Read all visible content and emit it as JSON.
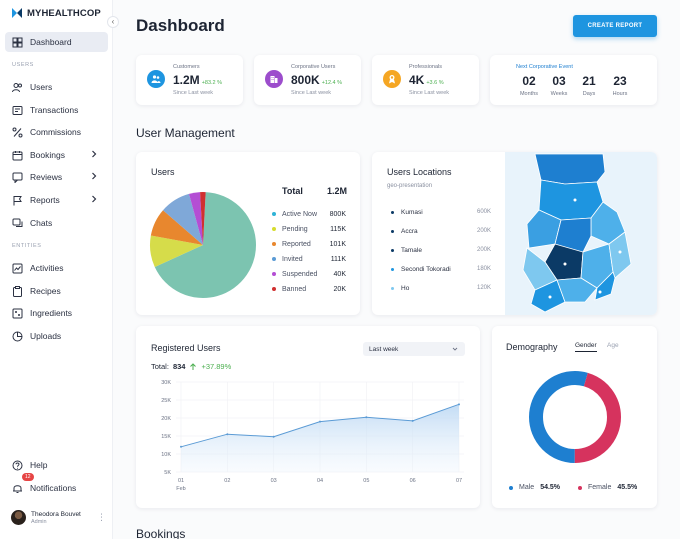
{
  "app": {
    "name": "MYHEALTHCOP"
  },
  "sidebar": {
    "collapse_label": "‹",
    "items_main": [
      {
        "label": "Dashboard",
        "icon": "grid-icon"
      }
    ],
    "section_users": "USERS",
    "items_users": [
      {
        "label": "Users",
        "icon": "users-icon"
      },
      {
        "label": "Transactions",
        "icon": "transactions-icon"
      },
      {
        "label": "Commissions",
        "icon": "percent-icon"
      },
      {
        "label": "Bookings",
        "icon": "calendar-icon"
      },
      {
        "label": "Reviews",
        "icon": "reviews-icon"
      },
      {
        "label": "Reports",
        "icon": "flag-icon"
      },
      {
        "label": "Chats",
        "icon": "chat-icon"
      }
    ],
    "section_entities": "ENTITIES",
    "items_entities": [
      {
        "label": "Activities",
        "icon": "activities-icon"
      },
      {
        "label": "Recipes",
        "icon": "clipboard-icon"
      },
      {
        "label": "Ingredients",
        "icon": "ingredients-icon"
      },
      {
        "label": "Uploads",
        "icon": "uploads-icon"
      }
    ],
    "help": "Help",
    "notifications": "Notifications",
    "notifications_count": "12",
    "user": {
      "name": "Theodora Bouvet",
      "role": "Admin",
      "more": "⋮"
    }
  },
  "header": {
    "title": "Dashboard",
    "create_button": "CREATE REPORT"
  },
  "stats": [
    {
      "label": "Customers",
      "value": "1.2M",
      "delta": "+83.2 %",
      "sub": "Since Last week",
      "color": "#1e95e0",
      "icon": "customers-icon"
    },
    {
      "label": "Corporative Users",
      "value": "800K",
      "delta": "+12.4 %",
      "sub": "Since Last week",
      "color": "#9c4dcc",
      "icon": "building-icon"
    },
    {
      "label": "Professionals",
      "value": "4K",
      "delta": "+3.6 %",
      "sub": "Since Last week",
      "color": "#f5a623",
      "icon": "badge-icon"
    }
  ],
  "event": {
    "title": "Next Corporative Event",
    "cells": [
      {
        "num": "02",
        "label": "Months"
      },
      {
        "num": "03",
        "label": "Weeks"
      },
      {
        "num": "21",
        "label": "Days"
      },
      {
        "num": "23",
        "label": "Hours"
      }
    ]
  },
  "user_management": {
    "title": "User Management",
    "users_card": {
      "title": "Users",
      "total_label": "Total",
      "total_value": "1.2M",
      "legend": [
        {
          "label": "Active Now",
          "value": "800K",
          "color": "#2fb3d6"
        },
        {
          "label": "Pending",
          "value": "115K",
          "color": "#d6dc2e"
        },
        {
          "label": "Reported",
          "value": "101K",
          "color": "#e8872e"
        },
        {
          "label": "Invited",
          "value": "111K",
          "color": "#5b9bd5"
        },
        {
          "label": "Suspended",
          "value": "40K",
          "color": "#b44ed4"
        },
        {
          "label": "Banned",
          "value": "20K",
          "color": "#d03030"
        }
      ]
    },
    "locations_card": {
      "title": "Users Locations",
      "subtitle": "geo-presentation",
      "rows": [
        {
          "label": "Kumasi",
          "value": "600K",
          "color": "#0b3a66"
        },
        {
          "label": "Accra",
          "value": "200K",
          "color": "#0b3a66"
        },
        {
          "label": "Tamale",
          "value": "200K",
          "color": "#0b3a66"
        },
        {
          "label": "Secondi Tokoradi",
          "value": "180K",
          "color": "#1e95e0"
        },
        {
          "label": "Ho",
          "value": "120K",
          "color": "#7ec8ef"
        }
      ]
    }
  },
  "registered": {
    "title": "Registered Users",
    "total_label": "Total:",
    "total_value": "834",
    "delta": "+37.89%",
    "period": "Last week",
    "chart_data": {
      "type": "area",
      "x": [
        "01",
        "02",
        "03",
        "04",
        "05",
        "06",
        "07"
      ],
      "x_sub": "Feb",
      "values": [
        12000,
        15500,
        14800,
        19000,
        20200,
        19200,
        23800
      ],
      "ylim": [
        5000,
        30000
      ],
      "yticks": [
        "5K",
        "10K",
        "15K",
        "20K",
        "25K",
        "30K"
      ],
      "color": "#5b9bd5"
    }
  },
  "demography": {
    "title": "Demography",
    "tabs": [
      "Gender",
      "Age"
    ],
    "chart_data": {
      "type": "pie",
      "labels": [
        "Male",
        "Female"
      ],
      "values": [
        54.5,
        45.5
      ],
      "display": [
        "54.5%",
        "45.5%"
      ],
      "colors": [
        "#1e7fd0",
        "#d6335e"
      ]
    }
  },
  "users_chart": {
    "chart_data": {
      "type": "pie",
      "labels": [
        "Active Now",
        "Pending",
        "Reported",
        "Invited",
        "Suspended",
        "Banned"
      ],
      "values": [
        800,
        115,
        101,
        111,
        40,
        20
      ],
      "colors": [
        "#7cc4b0",
        "#d6dc4a",
        "#e8872e",
        "#7fa8d8",
        "#b44ed4",
        "#d03030"
      ]
    }
  },
  "bookings": {
    "title": "Bookings"
  }
}
